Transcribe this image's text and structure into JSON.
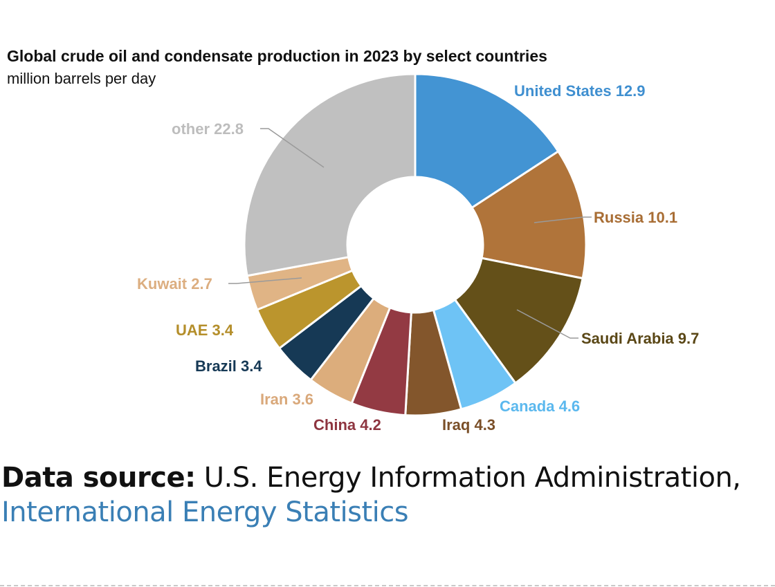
{
  "chart_data": {
    "type": "pie",
    "donut": true,
    "title": "Global crude oil and condensate production in 2023 by select countries",
    "subtitle": "million barrels per day",
    "slices": [
      {
        "name": "United States",
        "value": 12.9,
        "label": "United States 12.9",
        "color": "#4394d3",
        "label_color": "#3f8fd0"
      },
      {
        "name": "Russia",
        "value": 10.1,
        "label": "Russia 10.1",
        "color": "#b0743a",
        "label_color": "#a86d34"
      },
      {
        "name": "Saudi Arabia",
        "value": 9.7,
        "label": "Saudi Arabia 9.7",
        "color": "#645019",
        "label_color": "#5a4716"
      },
      {
        "name": "Canada",
        "value": 4.6,
        "label": "Canada 4.6",
        "color": "#6ec3f5",
        "label_color": "#5bb8ee"
      },
      {
        "name": "Iraq",
        "value": 4.3,
        "label": "Iraq 4.3",
        "color": "#83562c",
        "label_color": "#7a4f28"
      },
      {
        "name": "China",
        "value": 4.2,
        "label": "China 4.2",
        "color": "#933a43",
        "label_color": "#8e3540"
      },
      {
        "name": "Iran",
        "value": 3.6,
        "label": "Iran 3.6",
        "color": "#dcad7c",
        "label_color": "#d9a87a"
      },
      {
        "name": "Brazil",
        "value": 3.4,
        "label": "Brazil 3.4",
        "color": "#163955",
        "label_color": "#163955"
      },
      {
        "name": "UAE",
        "value": 3.4,
        "label": "UAE 3.4",
        "color": "#bb952d",
        "label_color": "#b48e2a"
      },
      {
        "name": "Kuwait",
        "value": 2.7,
        "label": "Kuwait 2.7",
        "color": "#e0b485",
        "label_color": "#dcae80"
      },
      {
        "name": "other",
        "value": 22.8,
        "label": "other 22.8",
        "color": "#c0c0c0",
        "label_color": "#bdbdbd"
      }
    ]
  },
  "source": {
    "prefix": "Data source:",
    "text": " U.S. Energy Information Administration,",
    "link_text": "International Energy Statistics"
  }
}
